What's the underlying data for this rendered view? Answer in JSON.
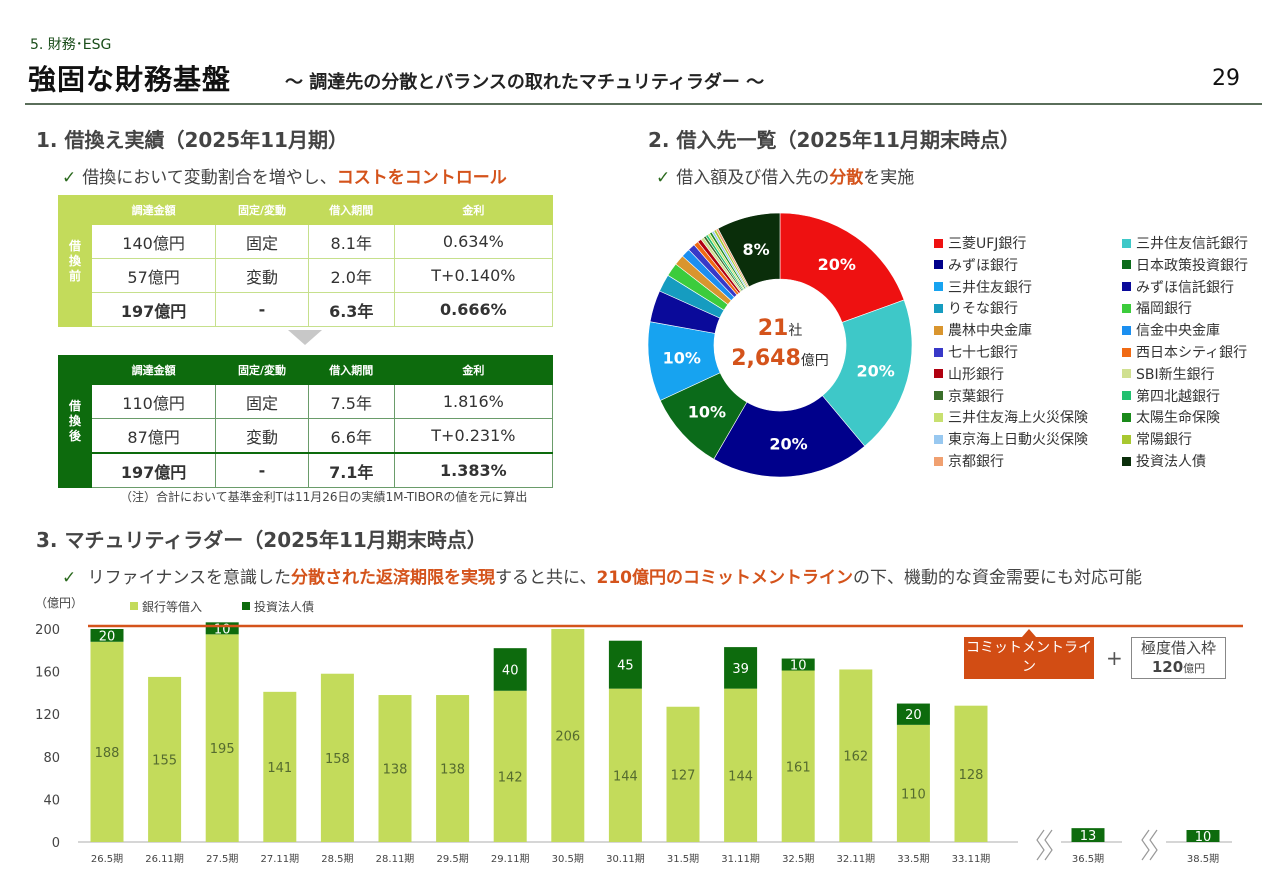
{
  "header": {
    "section": "5. 財務･ESG",
    "title": "強固な財務基盤",
    "subtitle": "～ 調達先の分散とバランスの取れたマチュリティラダー ～",
    "page_number": "29"
  },
  "section1": {
    "heading": "1. 借換え実績（2025年11月期）",
    "bullet_prefix": "借換において変動割合を増やし、",
    "bullet_highlight": "コストをコントロール",
    "columns": [
      "調達金額",
      "固定/変動",
      "借入期間",
      "金利"
    ],
    "before": {
      "side_label": "借換前",
      "rows": [
        [
          "140億円",
          "固定",
          "8.1年",
          "0.634%"
        ],
        [
          "57億円",
          "変動",
          "2.0年",
          "T+0.140%"
        ]
      ],
      "total": [
        "197億円",
        "-",
        "6.3年",
        "0.666%"
      ]
    },
    "after": {
      "side_label": "借換後",
      "rows": [
        [
          "110億円",
          "固定",
          "7.5年",
          "1.816%"
        ],
        [
          "87億円",
          "変動",
          "6.6年",
          "T+0.231%"
        ]
      ],
      "total": [
        "197億円",
        "-",
        "7.1年",
        "1.383%"
      ]
    },
    "note": "（注）合計において基準金利Tは11月26日の実績1M-TIBORの値を元に算出"
  },
  "section2": {
    "heading": "2. 借入先一覧（2025年11月期末時点）",
    "bullet_prefix": "借入額及び借入先の",
    "bullet_highlight": "分散",
    "bullet_suffix": "を実施",
    "center_count": "21",
    "center_count_unit": "社",
    "center_amount": "2,648",
    "center_amount_unit": "億円"
  },
  "section3": {
    "heading": "3. マチュリティラダー（2025年11月期末時点）",
    "bullet_parts": [
      {
        "text": "リファイナンスを意識した",
        "hl": false
      },
      {
        "text": "分散された返済期限を実現",
        "hl": true
      },
      {
        "text": "すると共に、",
        "hl": false
      },
      {
        "text": "210億円のコミットメントライン",
        "hl": true
      },
      {
        "text": "の下、機動的な資金需要にも対応可能",
        "hl": false
      }
    ],
    "commitment_label": "コミットメントライン",
    "commitment_amount": "210",
    "commitment_unit": "億円",
    "plus": "+",
    "limit_label": "極度借入枠",
    "limit_amount": "120",
    "limit_unit": "億円",
    "break_symbol": "≈"
  },
  "chart_data": [
    {
      "type": "pie",
      "title": "借入先一覧",
      "center_text": [
        "21社",
        "2,648億円"
      ],
      "slices": [
        {
          "name": "三菱UFJ銀行",
          "value": 20,
          "label": "20%",
          "color": "#ee1111"
        },
        {
          "name": "三井住友信託銀行",
          "value": 20,
          "label": "20%",
          "color": "#3ec8c8"
        },
        {
          "name": "みずほ銀行",
          "value": 20,
          "label": "20%",
          "color": "#00008b"
        },
        {
          "name": "日本政策投資銀行",
          "value": 10,
          "label": "10%",
          "color": "#0b6b1a"
        },
        {
          "name": "三井住友銀行",
          "value": 10,
          "label": "10%",
          "color": "#17a3f0"
        },
        {
          "name": "みずほ信託銀行",
          "value": 4,
          "label": "",
          "color": "#0a0a9a"
        },
        {
          "name": "りそな銀行",
          "value": 2.2,
          "label": "",
          "color": "#169cc0"
        },
        {
          "name": "福岡銀行",
          "value": 1.7,
          "label": "",
          "color": "#3ccc3c"
        },
        {
          "name": "農林中央金庫",
          "value": 1.3,
          "label": "",
          "color": "#d9952e"
        },
        {
          "name": "信金中央金庫",
          "value": 1.1,
          "label": "",
          "color": "#1b8ff0"
        },
        {
          "name": "七十七銀行",
          "value": 0.9,
          "label": "",
          "color": "#3838c8"
        },
        {
          "name": "西日本シティ銀行",
          "value": 0.6,
          "label": "",
          "color": "#f06a14"
        },
        {
          "name": "山形銀行",
          "value": 0.5,
          "label": "",
          "color": "#b00010"
        },
        {
          "name": "SBI新生銀行",
          "value": 0.4,
          "label": "",
          "color": "#d0e090"
        },
        {
          "name": "京葉銀行",
          "value": 0.3,
          "label": "",
          "color": "#3a6e2a"
        },
        {
          "name": "第四北越銀行",
          "value": 0.3,
          "label": "",
          "color": "#22c070"
        },
        {
          "name": "三井住友海上火災保険",
          "value": 0.3,
          "label": "",
          "color": "#c8e070"
        },
        {
          "name": "太陽生命保険",
          "value": 0.3,
          "label": "",
          "color": "#1a8a1a"
        },
        {
          "name": "東京海上日動火災保険",
          "value": 0.3,
          "label": "",
          "color": "#98c8f0"
        },
        {
          "name": "常陽銀行",
          "value": 0.3,
          "label": "",
          "color": "#a8c830"
        },
        {
          "name": "京都銀行",
          "value": 0.3,
          "label": "",
          "color": "#f0a070"
        },
        {
          "name": "投資法人債",
          "value": 8,
          "label": "8%",
          "color": "#0a2e0a"
        }
      ],
      "legend_columns": [
        [
          "三菱UFJ銀行",
          "みずほ銀行",
          "三井住友銀行",
          "りそな銀行",
          "農林中央金庫",
          "七十七銀行",
          "山形銀行",
          "京葉銀行",
          "三井住友海上火災保険",
          "東京海上日動火災保険",
          "京都銀行"
        ],
        [
          "三井住友信託銀行",
          "日本政策投資銀行",
          "みずほ信託銀行",
          "福岡銀行",
          "信金中央金庫",
          "西日本シティ銀行",
          "SBI新生銀行",
          "第四北越銀行",
          "太陽生命保険",
          "常陽銀行",
          "投資法人債"
        ]
      ],
      "legend_placement": "right"
    },
    {
      "type": "bar",
      "stacked": true,
      "title": "マチュリティラダー",
      "ylabel": "（億円）",
      "ylim": [
        0,
        200
      ],
      "yticks": [
        0,
        40,
        80,
        120,
        160,
        200
      ],
      "reference_line": {
        "value": 210,
        "label": "コミットメントライン 210億円",
        "color": "#d4531b"
      },
      "categories": [
        "26.5期",
        "26.11期",
        "27.5期",
        "27.11期",
        "28.5期",
        "28.11期",
        "29.5期",
        "29.11期",
        "30.5期",
        "30.11期",
        "31.5期",
        "31.11期",
        "32.5期",
        "32.11期",
        "33.5期",
        "33.11期",
        "36.5期",
        "38.5期"
      ],
      "axis_breaks_before": [
        "36.5期",
        "38.5期"
      ],
      "series": [
        {
          "name": "銀行等借入",
          "color": "#c3db5b",
          "label_color": "#556b2f",
          "values": [
            188,
            155,
            195,
            141,
            158,
            138,
            138,
            142,
            206,
            144,
            127,
            144,
            161,
            162,
            110,
            128,
            0,
            0
          ]
        },
        {
          "name": "投資法人債",
          "color": "#0d6b0d",
          "label_color": "#ffffff",
          "values": [
            20,
            0,
            10,
            0,
            0,
            0,
            0,
            40,
            0,
            45,
            0,
            39,
            10,
            0,
            20,
            0,
            13,
            10
          ]
        }
      ],
      "legend_placement": "top-left"
    }
  ]
}
